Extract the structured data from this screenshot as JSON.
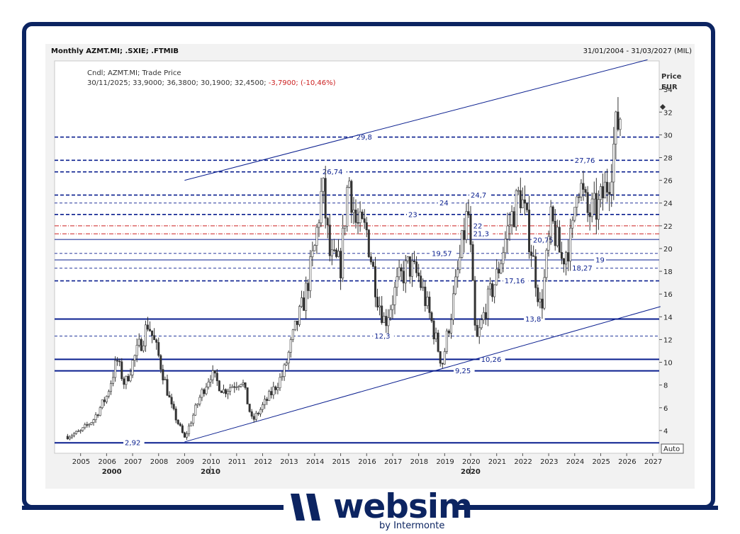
{
  "header": {
    "title": "Monthly AZMT.MI; .SXIE; .FTMIB",
    "date_range": "31/01/2004 - 31/03/2027 (MIL)"
  },
  "legend": {
    "series_line": "Cndl; AZMT.MI; Trade Price",
    "values_line": "30/11/2025; 33,9000; 36,3800; 30,1900; 32,4500;",
    "change": "-3,7900; (-10,46%)"
  },
  "brand": {
    "name": "websim",
    "sub": "by Intermonte"
  },
  "colors": {
    "frame": "#0c2461",
    "level_lines": "#0a1f8f",
    "candles": "#333333",
    "red_levels": "#cc1f1f",
    "background": "#f2f2f2"
  },
  "chart_data": {
    "type": "candlestick",
    "frequency": "monthly",
    "instrument": "AZMT.MI",
    "y_axis": {
      "label": "Price",
      "unit": "EUR",
      "range": [
        2.0,
        36.5
      ],
      "ticks": [
        "4",
        "6",
        "8",
        "10",
        "12",
        "14",
        "16",
        "18",
        "20",
        "22",
        "24",
        "26",
        "28",
        "30",
        "32",
        "34"
      ],
      "scale_mode": "Auto"
    },
    "x_axis": {
      "range": [
        "2004-01",
        "2027-03"
      ],
      "year_ticks": [
        "2005",
        "2006",
        "2007",
        "2008",
        "2009",
        "2010",
        "2011",
        "2012",
        "2013",
        "2014",
        "2015",
        "2016",
        "2017",
        "2018",
        "2019",
        "2020",
        "2021",
        "2022",
        "2023",
        "2024",
        "2025",
        "2026",
        "2027"
      ],
      "decade_labels": [
        "2000",
        "2010",
        "2020"
      ]
    },
    "last_candle": {
      "date": "30/11/2025",
      "open": 33.9,
      "high": 36.38,
      "low": 30.19,
      "close": 32.45,
      "change": -3.79,
      "change_pct": -10.46
    },
    "levels": [
      {
        "value": 29.8,
        "label": "29,8",
        "style": "dashed-thick",
        "color": "#0a1f8f",
        "label_at": "2015.6"
      },
      {
        "value": 27.76,
        "label": "27,76",
        "style": "dashed-thick",
        "color": "#0a1f8f",
        "label_at": "2024.0"
      },
      {
        "value": 26.74,
        "label": "26,74",
        "style": "dashed-thick",
        "color": "#0a1f8f",
        "label_at": "2014.3"
      },
      {
        "value": 24.7,
        "label": "24,7",
        "style": "dashed-thick",
        "color": "#0a1f8f",
        "label_at": "2020.0"
      },
      {
        "value": 24.0,
        "label": "24",
        "style": "dashed-thin",
        "color": "#0a1f8f",
        "label_at": "2018.8"
      },
      {
        "value": 23.0,
        "label": "23",
        "style": "dashed-thick",
        "color": "#0a1f8f",
        "label_at": "2017.6"
      },
      {
        "value": 22.0,
        "label": "22",
        "style": "dashdot-red",
        "color": "#cc1f1f",
        "label_at": "2020.1"
      },
      {
        "value": 21.3,
        "label": "21,3",
        "style": "dashdot-red",
        "color": "#cc1f1f",
        "label_at": "2020.1"
      },
      {
        "value": 20.8,
        "label": "",
        "style": "solid-thin",
        "color": "#0a1f8f",
        "label_at": ""
      },
      {
        "value": 20.75,
        "label": "20,75",
        "style": "none",
        "color": "#0a1f8f",
        "label_at": "2022.4"
      },
      {
        "value": 19.57,
        "label": "19,57",
        "style": "dashed-thin",
        "color": "#0a1f8f",
        "label_at": "2018.5"
      },
      {
        "value": 19.0,
        "label": "19",
        "style": "solid-thin",
        "color": "#0a1f8f",
        "label_at": "2024.8"
      },
      {
        "value": 18.27,
        "label": "18,27",
        "style": "dashed-thin",
        "color": "#0a1f8f",
        "label_at": "2023.9"
      },
      {
        "value": 17.16,
        "label": "17,16",
        "style": "dashed-thick",
        "color": "#0a1f8f",
        "label_at": "2021.3"
      },
      {
        "value": 13.8,
        "label": "13,8",
        "style": "solid-thick",
        "color": "#0a1f8f",
        "label_at": "2022.1"
      },
      {
        "value": 12.3,
        "label": "12,3",
        "style": "dashed-thin",
        "color": "#0a1f8f",
        "label_at": "2016.3"
      },
      {
        "value": 10.26,
        "label": "10,26",
        "style": "solid-thick",
        "color": "#0a1f8f",
        "label_at": "2020.4"
      },
      {
        "value": 9.25,
        "label": "9,25",
        "style": "solid-thick",
        "color": "#0a1f8f",
        "label_at": "2019.4"
      },
      {
        "value": 2.92,
        "label": "2,92",
        "style": "solid-thick",
        "color": "#0a1f8f",
        "label_at": "2006.7"
      }
    ],
    "trendlines": [
      {
        "name": "upper channel",
        "from": [
          2009.0,
          26.0
        ],
        "to": [
          2026.8,
          36.6
        ]
      },
      {
        "name": "lower channel",
        "from": [
          2009.0,
          3.0
        ],
        "to": [
          2027.3,
          14.9
        ]
      }
    ],
    "candles_approx": [
      {
        "date": "2004.5",
        "close": 3.5
      },
      {
        "date": "2005.0",
        "close": 3.9
      },
      {
        "date": "2005.5",
        "close": 5.0
      },
      {
        "date": "2006.0",
        "close": 7.0
      },
      {
        "date": "2006.4",
        "close": 10.2
      },
      {
        "date": "2006.7",
        "close": 8.0
      },
      {
        "date": "2007.0",
        "close": 10.0
      },
      {
        "date": "2007.4",
        "close": 12.2
      },
      {
        "date": "2007.6",
        "close": 13.5
      },
      {
        "date": "2008.0",
        "close": 10.5
      },
      {
        "date": "2008.5",
        "close": 6.0
      },
      {
        "date": "2009.0",
        "close": 3.3
      },
      {
        "date": "2009.6",
        "close": 7.0
      },
      {
        "date": "2010.0",
        "close": 9.0
      },
      {
        "date": "2010.5",
        "close": 7.5
      },
      {
        "date": "2011.2",
        "close": 8.5
      },
      {
        "date": "2011.6",
        "close": 4.8
      },
      {
        "date": "2012.2",
        "close": 6.8
      },
      {
        "date": "2012.8",
        "close": 9.0
      },
      {
        "date": "2013.2",
        "close": 12.5
      },
      {
        "date": "2013.6",
        "close": 15.5
      },
      {
        "date": "2014.0",
        "close": 20.0
      },
      {
        "date": "2014.3",
        "close": 25.5
      },
      {
        "date": "2014.6",
        "close": 19.0
      },
      {
        "date": "2015.0",
        "close": 18.5
      },
      {
        "date": "2015.3",
        "close": 26.5
      },
      {
        "date": "2015.6",
        "close": 22.0
      },
      {
        "date": "2016.0",
        "close": 21.5
      },
      {
        "date": "2016.4",
        "close": 16.0
      },
      {
        "date": "2016.7",
        "close": 13.5
      },
      {
        "date": "2017.2",
        "close": 17.0
      },
      {
        "date": "2017.6",
        "close": 18.5
      },
      {
        "date": "2018.0",
        "close": 17.5
      },
      {
        "date": "2018.5",
        "close": 13.5
      },
      {
        "date": "2018.9",
        "close": 9.8
      },
      {
        "date": "2019.3",
        "close": 15.0
      },
      {
        "date": "2019.9",
        "close": 23.5
      },
      {
        "date": "2020.2",
        "close": 11.5
      },
      {
        "date": "2020.6",
        "close": 15.0
      },
      {
        "date": "2021.0",
        "close": 17.5
      },
      {
        "date": "2021.4",
        "close": 21.5
      },
      {
        "date": "2021.9",
        "close": 25.0
      },
      {
        "date": "2022.3",
        "close": 20.5
      },
      {
        "date": "2022.7",
        "close": 14.5
      },
      {
        "date": "2023.1",
        "close": 22.5
      },
      {
        "date": "2023.5",
        "close": 19.0
      },
      {
        "date": "2023.9",
        "close": 21.0
      },
      {
        "date": "2024.1",
        "close": 26.5
      },
      {
        "date": "2024.5",
        "close": 23.0
      },
      {
        "date": "2024.9",
        "close": 23.5
      },
      {
        "date": "2025.3",
        "close": 26.0
      },
      {
        "date": "2025.6",
        "close": 30.5
      },
      {
        "date": "2025.83",
        "close": 32.45
      }
    ],
    "grid": false,
    "legend_position": "top-left"
  }
}
